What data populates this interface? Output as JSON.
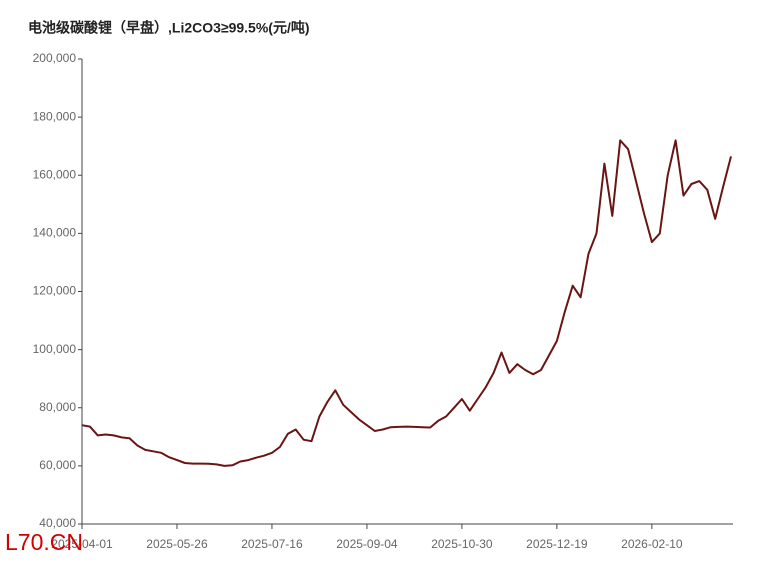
{
  "chart_data": {
    "type": "line",
    "title": "电池级碳酸锂（早盘）,Li2CO3≥99.5%(元/吨)",
    "watermark": "L70.CN",
    "categories": [
      "2025-04-01",
      null,
      null,
      null,
      null,
      null,
      null,
      null,
      null,
      null,
      null,
      null,
      "2025-05-26",
      null,
      null,
      null,
      null,
      null,
      null,
      null,
      null,
      null,
      null,
      null,
      "2025-07-16",
      null,
      null,
      null,
      null,
      null,
      null,
      null,
      null,
      null,
      null,
      null,
      "2025-09-04",
      null,
      null,
      null,
      null,
      null,
      null,
      null,
      null,
      null,
      null,
      null,
      "2025-10-30",
      null,
      null,
      null,
      null,
      null,
      null,
      null,
      null,
      null,
      null,
      null,
      "2025-12-19",
      null,
      null,
      null,
      null,
      null,
      null,
      null,
      null,
      null,
      null,
      null,
      "2026-02-10",
      null,
      null,
      null,
      null,
      null,
      null,
      null,
      null,
      null,
      null
    ],
    "series": [
      {
        "name": "电池级碳酸锂",
        "color": "#6b1414",
        "values": [
          74000,
          73500,
          70500,
          70800,
          70500,
          69800,
          69500,
          67000,
          65500,
          65000,
          64500,
          63000,
          62000,
          61000,
          60800,
          60800,
          60700,
          60500,
          60000,
          60200,
          61500,
          62000,
          62800,
          63500,
          64500,
          66500,
          71000,
          72500,
          69000,
          68500,
          77000,
          82000,
          86000,
          81000,
          78500,
          76000,
          74000,
          72000,
          72500,
          73300,
          73400,
          73500,
          73400,
          73300,
          73200,
          75500,
          77000,
          80000,
          83000,
          79000,
          83000,
          87000,
          92000,
          99000,
          92000,
          95000,
          93000,
          91500,
          93000,
          98000,
          103000,
          113000,
          122000,
          118000,
          133000,
          140000,
          164000,
          146000,
          172000,
          169000,
          158000,
          147000,
          137000,
          140000,
          160000,
          172000,
          153000,
          157000,
          158000,
          155000,
          145000,
          156000,
          166500
        ]
      }
    ],
    "ylim": [
      40000,
      200000
    ],
    "yticks": [
      {
        "value": 40000,
        "label": "40,000"
      },
      {
        "value": 60000,
        "label": "60,000"
      },
      {
        "value": 80000,
        "label": "80,000"
      },
      {
        "value": 100000,
        "label": "100,000"
      },
      {
        "value": 120000,
        "label": "120,000"
      },
      {
        "value": 140000,
        "label": "140,000"
      },
      {
        "value": 160000,
        "label": "160,000"
      },
      {
        "value": 180000,
        "label": "180,000"
      },
      {
        "value": 200000,
        "label": "200,000"
      }
    ]
  }
}
